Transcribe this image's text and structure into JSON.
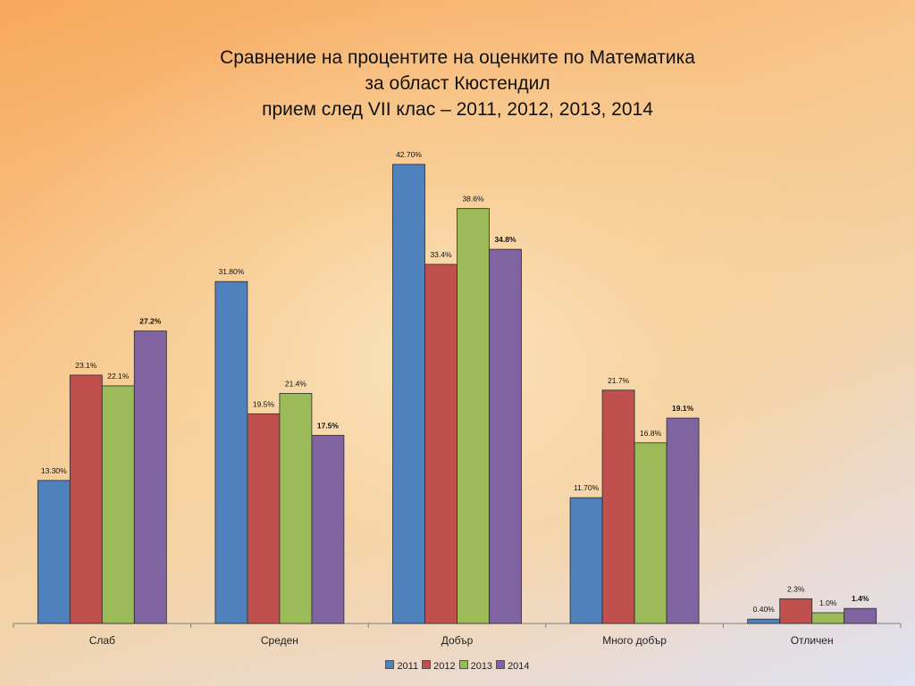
{
  "chart_data": {
    "type": "bar",
    "title_lines": [
      "Сравнение на процентите на оценките по Математика",
      "за област Кюстендил",
      "прием след VII клас – 2011, 2012, 2013, 2014"
    ],
    "categories": [
      "Слаб",
      "Среден",
      "Добър",
      "Много добър",
      "Отличен"
    ],
    "series": [
      {
        "name": "2011",
        "color": "#4f81bd",
        "values": [
          13.3,
          31.8,
          42.7,
          11.7,
          0.4
        ],
        "labels": [
          "13.30%",
          "31.80%",
          "42.70%",
          "11.70%",
          "0.40%"
        ],
        "label_bold": false
      },
      {
        "name": "2012",
        "color": "#c0504d",
        "values": [
          23.1,
          19.5,
          33.4,
          21.7,
          2.3
        ],
        "labels": [
          "23.1%",
          "19.5%",
          "33.4%",
          "21.7%",
          "2.3%"
        ],
        "label_bold": false
      },
      {
        "name": "2013",
        "color": "#9bbb59",
        "values": [
          22.1,
          21.4,
          38.6,
          16.8,
          1.0
        ],
        "labels": [
          "22.1%",
          "21.4%",
          "38.6%",
          "16.8%",
          "1.0%"
        ],
        "label_bold": false
      },
      {
        "name": "2014",
        "color": "#8064a2",
        "values": [
          27.2,
          17.5,
          34.8,
          19.1,
          1.4
        ],
        "labels": [
          "27.2%",
          "17.5%",
          "34.8%",
          "19.1%",
          "1.4%"
        ],
        "label_bold": true
      }
    ],
    "ylim": [
      0,
      45
    ],
    "grid": false,
    "legend_position": "bottom"
  }
}
